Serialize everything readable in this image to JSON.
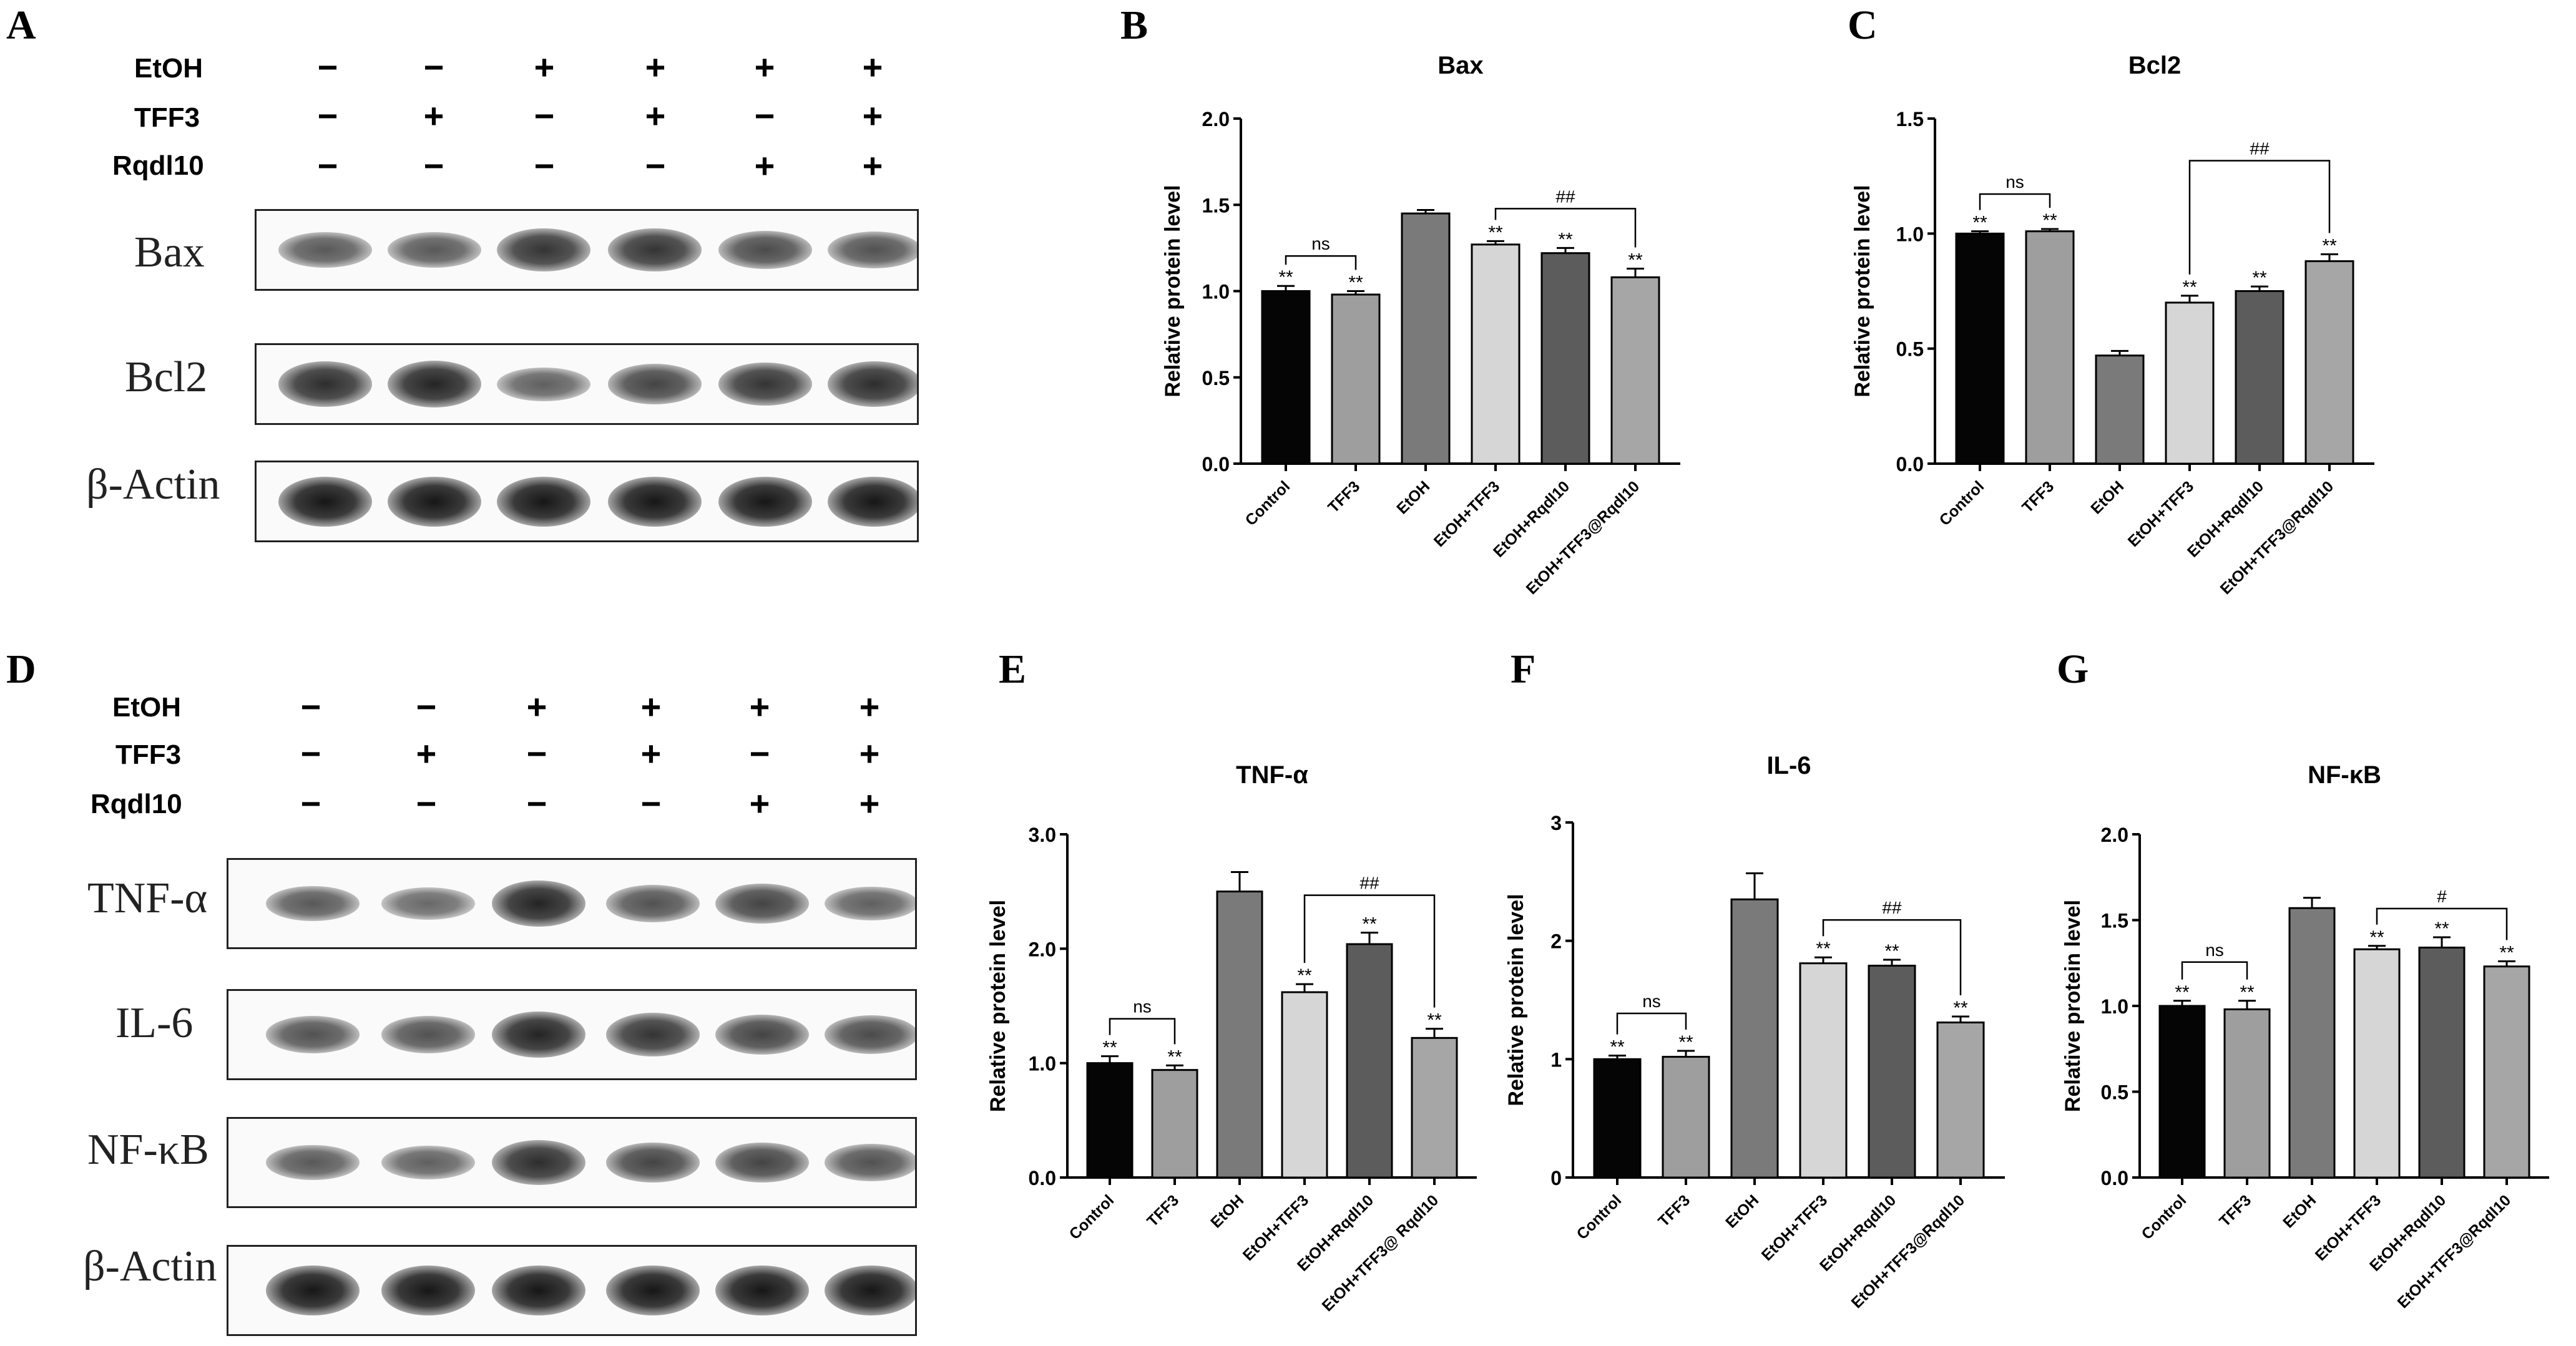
{
  "panels": {
    "A": "A",
    "B": "B",
    "C": "C",
    "D": "D",
    "E": "E",
    "F": "F",
    "G": "G"
  },
  "conditions": {
    "labels": [
      "EtOH",
      "TFF3",
      "Rqdl10"
    ],
    "signs": [
      [
        "−",
        "−",
        "+",
        "+",
        "+",
        "+"
      ],
      [
        "−",
        "+",
        "−",
        "+",
        "−",
        "+"
      ],
      [
        "−",
        "−",
        "−",
        "−",
        "+",
        "+"
      ]
    ]
  },
  "blot_A": {
    "proteins": [
      "Bax",
      "Bcl2",
      "β-Actin"
    ],
    "band_intensity": [
      [
        0.55,
        0.55,
        0.8,
        0.8,
        0.65,
        0.6
      ],
      [
        0.85,
        0.9,
        0.5,
        0.7,
        0.8,
        0.85
      ],
      [
        1,
        1,
        1,
        1,
        1,
        1
      ]
    ]
  },
  "blot_D": {
    "proteins": [
      "TNF-α",
      "IL-6",
      "NF-κB",
      "β-Actin"
    ],
    "band_intensity": [
      [
        0.55,
        0.45,
        0.9,
        0.6,
        0.7,
        0.5
      ],
      [
        0.6,
        0.6,
        0.9,
        0.8,
        0.7,
        0.65
      ],
      [
        0.55,
        0.5,
        0.85,
        0.7,
        0.7,
        0.6
      ],
      [
        1,
        1,
        1,
        1,
        1,
        1
      ]
    ]
  },
  "chart_data": [
    {
      "panel": "B",
      "type": "bar",
      "title": "Bax",
      "ylabel": "Relative protein level",
      "categories": [
        "Control",
        "TFF3",
        "EtOH",
        "EtOH+TFF3",
        "EtOH+Rqdl10",
        "EtOH+TFF3@Rqdl10"
      ],
      "values": [
        1.0,
        0.98,
        1.45,
        1.27,
        1.22,
        1.08
      ],
      "errors": [
        0.03,
        0.02,
        0.02,
        0.02,
        0.03,
        0.05
      ],
      "sig": [
        "**",
        "**",
        "",
        "**",
        "**",
        "**"
      ],
      "ylim": [
        0,
        2.0
      ],
      "yticks": [
        "0.0",
        "0.5",
        "1.0",
        "1.5",
        "2.0"
      ],
      "brackets": [
        {
          "from": 0,
          "to": 1,
          "label": "ns"
        },
        {
          "from": 3,
          "to": 5,
          "label": "##"
        }
      ],
      "colors": [
        "#050505",
        "#9e9e9e",
        "#7a7a7a",
        "#d6d6d6",
        "#5c5c5c",
        "#a6a6a6"
      ]
    },
    {
      "panel": "C",
      "type": "bar",
      "title": "Bcl2",
      "ylabel": "Relative protein level",
      "categories": [
        "Control",
        "TFF3",
        "EtOH",
        "EtOH+TFF3",
        "EtOH+Rqdl10",
        "EtOH+TFF3@Rqdl10"
      ],
      "values": [
        1.0,
        1.01,
        0.47,
        0.7,
        0.75,
        0.88
      ],
      "errors": [
        0.01,
        0.01,
        0.02,
        0.03,
        0.02,
        0.03
      ],
      "sig": [
        "**",
        "**",
        "",
        "**",
        "**",
        "**"
      ],
      "ylim": [
        0,
        1.5
      ],
      "yticks": [
        "0.0",
        "0.5",
        "1.0",
        "1.5"
      ],
      "brackets": [
        {
          "from": 0,
          "to": 1,
          "label": "ns"
        },
        {
          "from": 3,
          "to": 5,
          "label": "##"
        }
      ],
      "colors": [
        "#050505",
        "#9e9e9e",
        "#7a7a7a",
        "#d6d6d6",
        "#5c5c5c",
        "#a6a6a6"
      ]
    },
    {
      "panel": "E",
      "type": "bar",
      "title": "TNF-α",
      "ylabel": "Relative protein level",
      "categories": [
        "Control",
        "TFF3",
        "EtOH",
        "EtOH+TFF3",
        "EtOH+Rqdl10",
        "EtOH+TFF3@ Rqdl10"
      ],
      "values": [
        1.0,
        0.94,
        2.5,
        1.62,
        2.04,
        1.22
      ],
      "errors": [
        0.06,
        0.04,
        0.17,
        0.07,
        0.1,
        0.08
      ],
      "sig": [
        "**",
        "**",
        "",
        "**",
        "**",
        "**"
      ],
      "ylim": [
        0,
        3.0
      ],
      "yticks": [
        "0.0",
        "1.0",
        "2.0",
        "3.0"
      ],
      "brackets": [
        {
          "from": 0,
          "to": 1,
          "label": "ns"
        },
        {
          "from": 3,
          "to": 5,
          "label": "##"
        }
      ],
      "colors": [
        "#050505",
        "#9e9e9e",
        "#7a7a7a",
        "#d6d6d6",
        "#5c5c5c",
        "#a6a6a6"
      ]
    },
    {
      "panel": "F",
      "type": "bar",
      "title": "IL-6",
      "ylabel": "Relative protein level",
      "categories": [
        "Control",
        "TFF3",
        "EtOH",
        "EtOH+TFF3",
        "EtOH+Rqdl10",
        "EtOH+TFF3@Rqdl10"
      ],
      "values": [
        1.0,
        1.02,
        2.35,
        1.81,
        1.79,
        1.31
      ],
      "errors": [
        0.03,
        0.05,
        0.22,
        0.05,
        0.05,
        0.05
      ],
      "sig": [
        "**",
        "**",
        "",
        "**",
        "**",
        "**"
      ],
      "ylim": [
        0,
        3
      ],
      "yticks": [
        "0",
        "1",
        "2",
        "3"
      ],
      "brackets": [
        {
          "from": 0,
          "to": 1,
          "label": "ns"
        },
        {
          "from": 3,
          "to": 5,
          "label": "##"
        }
      ],
      "colors": [
        "#050505",
        "#9e9e9e",
        "#7a7a7a",
        "#d6d6d6",
        "#5c5c5c",
        "#a6a6a6"
      ]
    },
    {
      "panel": "G",
      "type": "bar",
      "title": "NF-κB",
      "ylabel": "Relative protein level",
      "categories": [
        "Control",
        "TFF3",
        "EtOH",
        "EtOH+TFF3",
        "EtOH+Rqdl10",
        "EtOH+TFF3@Rqdl10"
      ],
      "values": [
        1.0,
        0.98,
        1.57,
        1.33,
        1.34,
        1.23
      ],
      "errors": [
        0.03,
        0.05,
        0.06,
        0.02,
        0.06,
        0.03
      ],
      "sig": [
        "**",
        "**",
        "",
        "**",
        "**",
        "**"
      ],
      "ylim": [
        0,
        2.0
      ],
      "yticks": [
        "0.0",
        "0.5",
        "1.0",
        "1.5",
        "2.0"
      ],
      "brackets": [
        {
          "from": 0,
          "to": 1,
          "label": "ns"
        },
        {
          "from": 3,
          "to": 5,
          "label": "#"
        }
      ],
      "colors": [
        "#050505",
        "#9e9e9e",
        "#7a7a7a",
        "#d6d6d6",
        "#5c5c5c",
        "#a6a6a6"
      ]
    }
  ]
}
